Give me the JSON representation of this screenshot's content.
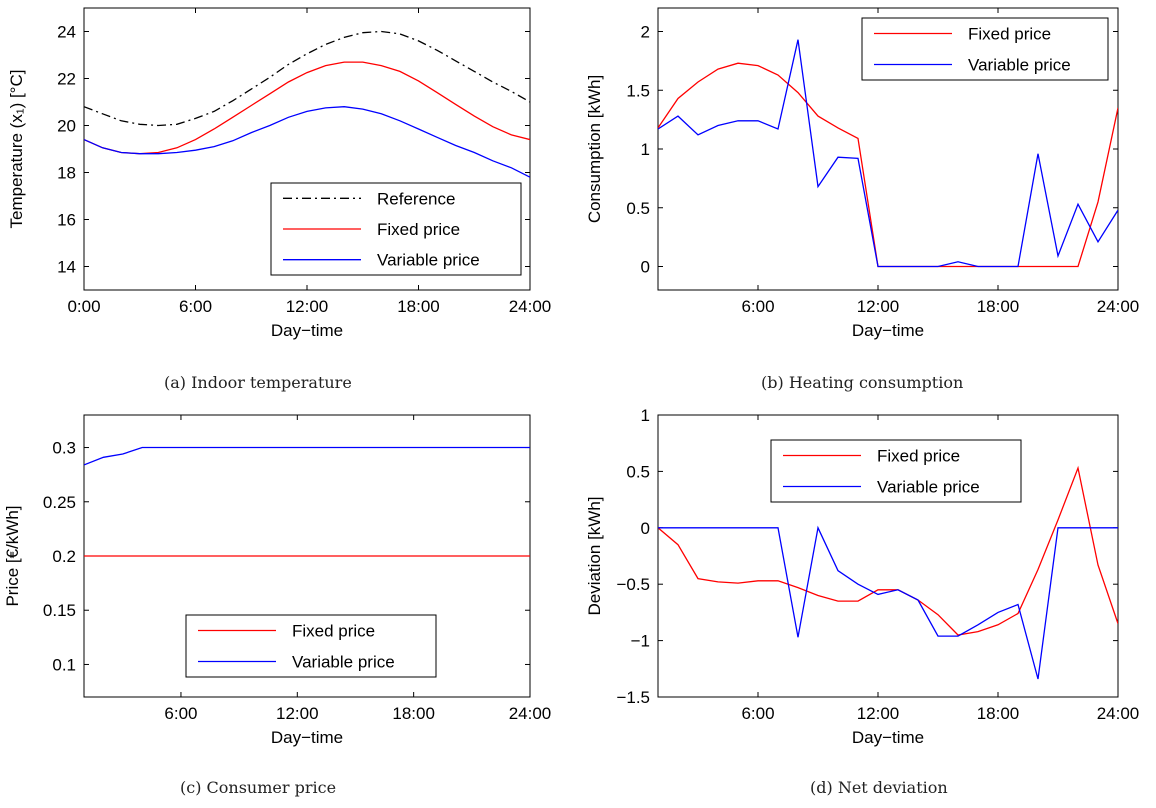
{
  "figure": {
    "captions": [
      "(a) Indoor temperature",
      "(b) Heating consumption",
      "(c) Consumer price",
      "(d) Net deviation"
    ]
  },
  "colors": {
    "reference": "#000000",
    "fixed": "#ff0000",
    "variable": "#0000ff"
  },
  "chart_data": [
    {
      "type": "line",
      "caption": "(a) Indoor temperature",
      "xlabel": "Day−time",
      "ylabel": "Temperature (x₁) [°C]",
      "xlim": [
        0,
        24
      ],
      "ylim": [
        13,
        25
      ],
      "xticks": [
        0,
        6,
        12,
        18,
        24
      ],
      "xticklabels": [
        "0:00",
        "6:00",
        "12:00",
        "18:00",
        "24:00"
      ],
      "yticks": [
        14,
        16,
        18,
        20,
        22,
        24
      ],
      "yticklabels": [
        "14",
        "16",
        "18",
        "20",
        "22",
        "24"
      ],
      "grid": false,
      "legend_position": "bottom-right",
      "series": [
        {
          "name": "Reference",
          "style": "dashdot",
          "color": "#000000",
          "x": [
            0,
            1,
            2,
            3,
            4,
            5,
            6,
            7,
            8,
            9,
            10,
            11,
            12,
            13,
            14,
            15,
            16,
            17,
            18,
            19,
            20,
            21,
            22,
            23,
            24
          ],
          "y": [
            20.8,
            20.5,
            20.2,
            20.05,
            20.0,
            20.05,
            20.3,
            20.6,
            21.05,
            21.55,
            22.05,
            22.6,
            23.05,
            23.45,
            23.75,
            23.95,
            24.0,
            23.9,
            23.6,
            23.2,
            22.75,
            22.3,
            21.85,
            21.45,
            21.0
          ]
        },
        {
          "name": "Fixed price",
          "style": "solid",
          "color": "#ff0000",
          "x": [
            0,
            1,
            2,
            3,
            4,
            5,
            6,
            7,
            8,
            9,
            10,
            11,
            12,
            13,
            14,
            15,
            16,
            17,
            18,
            19,
            20,
            21,
            22,
            23,
            24
          ],
          "y": [
            19.4,
            19.05,
            18.85,
            18.8,
            18.85,
            19.05,
            19.4,
            19.85,
            20.35,
            20.85,
            21.35,
            21.85,
            22.25,
            22.55,
            22.7,
            22.7,
            22.55,
            22.3,
            21.9,
            21.4,
            20.9,
            20.4,
            19.95,
            19.6,
            19.4
          ]
        },
        {
          "name": "Variable price",
          "style": "solid",
          "color": "#0000ff",
          "x": [
            0,
            1,
            2,
            3,
            4,
            5,
            6,
            7,
            8,
            9,
            10,
            11,
            12,
            13,
            14,
            15,
            16,
            17,
            18,
            19,
            20,
            21,
            22,
            23,
            24
          ],
          "y": [
            19.4,
            19.05,
            18.85,
            18.8,
            18.8,
            18.85,
            18.95,
            19.1,
            19.35,
            19.7,
            20.0,
            20.35,
            20.6,
            20.75,
            20.8,
            20.7,
            20.5,
            20.2,
            19.85,
            19.5,
            19.15,
            18.85,
            18.5,
            18.2,
            17.8
          ]
        }
      ]
    },
    {
      "type": "line",
      "caption": "(b) Heating consumption",
      "xlabel": "Day−time",
      "ylabel": "Consumption [kWh]",
      "xlim": [
        1,
        24
      ],
      "ylim": [
        -0.2,
        2.2
      ],
      "xticks": [
        6,
        12,
        18,
        24
      ],
      "xticklabels": [
        "6:00",
        "12:00",
        "18:00",
        "24:00"
      ],
      "yticks": [
        0,
        0.5,
        1,
        1.5,
        2
      ],
      "yticklabels": [
        "0",
        "0.5",
        "1",
        "1.5",
        "2"
      ],
      "grid": false,
      "legend_position": "top-right",
      "series": [
        {
          "name": "Fixed price",
          "style": "solid",
          "color": "#ff0000",
          "x": [
            1,
            2,
            3,
            4,
            5,
            6,
            7,
            8,
            9,
            10,
            11,
            12,
            13,
            14,
            15,
            16,
            17,
            18,
            19,
            20,
            21,
            22,
            23,
            24
          ],
          "y": [
            1.18,
            1.43,
            1.57,
            1.68,
            1.73,
            1.71,
            1.63,
            1.48,
            1.28,
            1.18,
            1.09,
            0,
            0,
            0,
            0,
            0,
            0,
            0,
            0,
            0,
            0,
            0,
            0.55,
            1.35
          ]
        },
        {
          "name": "Variable price",
          "style": "solid",
          "color": "#0000ff",
          "x": [
            1,
            2,
            3,
            4,
            5,
            6,
            7,
            8,
            9,
            10,
            11,
            12,
            13,
            14,
            15,
            16,
            17,
            18,
            19,
            20,
            21,
            22,
            23,
            24
          ],
          "y": [
            1.17,
            1.28,
            1.12,
            1.2,
            1.24,
            1.24,
            1.17,
            1.93,
            0.68,
            0.93,
            0.92,
            0,
            0,
            0,
            0,
            0.04,
            0,
            0,
            0,
            0.96,
            0.09,
            0.53,
            0.21,
            0.48
          ]
        }
      ]
    },
    {
      "type": "line",
      "caption": "(c) Consumer price",
      "xlabel": "Day−time",
      "ylabel": "Price [€/kWh]",
      "xlim": [
        1,
        24
      ],
      "ylim": [
        0.07,
        0.33
      ],
      "xticks": [
        6,
        12,
        18,
        24
      ],
      "xticklabels": [
        "6:00",
        "12:00",
        "18:00",
        "24:00"
      ],
      "yticks": [
        0.1,
        0.15,
        0.2,
        0.25,
        0.3
      ],
      "yticklabels": [
        "0.1",
        "0.15",
        "0.2",
        "0.25",
        "0.3"
      ],
      "grid": false,
      "legend_position": "bottom-center",
      "series": [
        {
          "name": "Fixed price",
          "style": "solid",
          "color": "#ff0000",
          "x": [
            1,
            24
          ],
          "y": [
            0.2,
            0.2
          ]
        },
        {
          "name": "Variable price",
          "style": "solid",
          "color": "#0000ff",
          "x": [
            1,
            2,
            3,
            4,
            5,
            6,
            7,
            8,
            9,
            10,
            11,
            12,
            13,
            14,
            15,
            16,
            17,
            18,
            19,
            20,
            21,
            22,
            23,
            24
          ],
          "y": [
            0.284,
            0.291,
            0.294,
            0.3,
            0.3,
            0.3,
            0.3,
            0.3,
            0.3,
            0.3,
            0.3,
            0.3,
            0.3,
            0.3,
            0.3,
            0.3,
            0.3,
            0.3,
            0.3,
            0.3,
            0.3,
            0.3,
            0.3,
            0.3
          ]
        }
      ]
    },
    {
      "type": "line",
      "caption": "(d) Net deviation",
      "xlabel": "Day−time",
      "ylabel": "Deviation [kWh]",
      "xlim": [
        1,
        24
      ],
      "ylim": [
        -1.5,
        1
      ],
      "xticks": [
        6,
        12,
        18,
        24
      ],
      "xticklabels": [
        "6:00",
        "12:00",
        "18:00",
        "24:00"
      ],
      "yticks": [
        -1.5,
        -1,
        -0.5,
        0,
        0.5,
        1
      ],
      "yticklabels": [
        "−1.5",
        "−1",
        "−0.5",
        "0",
        "0.5",
        "1"
      ],
      "grid": false,
      "legend_position": "top-center",
      "series": [
        {
          "name": "Fixed price",
          "style": "solid",
          "color": "#ff0000",
          "x": [
            1,
            2,
            3,
            4,
            5,
            6,
            7,
            8,
            9,
            10,
            11,
            12,
            13,
            14,
            15,
            16,
            17,
            18,
            19,
            20,
            21,
            22,
            23,
            24
          ],
          "y": [
            0,
            -0.15,
            -0.45,
            -0.48,
            -0.49,
            -0.47,
            -0.47,
            -0.53,
            -0.6,
            -0.65,
            -0.65,
            -0.55,
            -0.55,
            -0.64,
            -0.77,
            -0.95,
            -0.92,
            -0.86,
            -0.76,
            -0.37,
            0.07,
            0.53,
            -0.33,
            -0.85
          ]
        },
        {
          "name": "Variable price",
          "style": "solid",
          "color": "#0000ff",
          "x": [
            1,
            2,
            3,
            4,
            5,
            6,
            7,
            8,
            9,
            10,
            11,
            12,
            13,
            14,
            15,
            16,
            17,
            18,
            19,
            20,
            21,
            22,
            23,
            24
          ],
          "y": [
            0,
            0,
            0,
            0,
            0,
            0,
            0,
            -0.97,
            0,
            -0.38,
            -0.5,
            -0.59,
            -0.55,
            -0.64,
            -0.96,
            -0.96,
            -0.86,
            -0.75,
            -0.68,
            -1.34,
            0,
            0,
            0,
            0
          ]
        }
      ]
    }
  ]
}
